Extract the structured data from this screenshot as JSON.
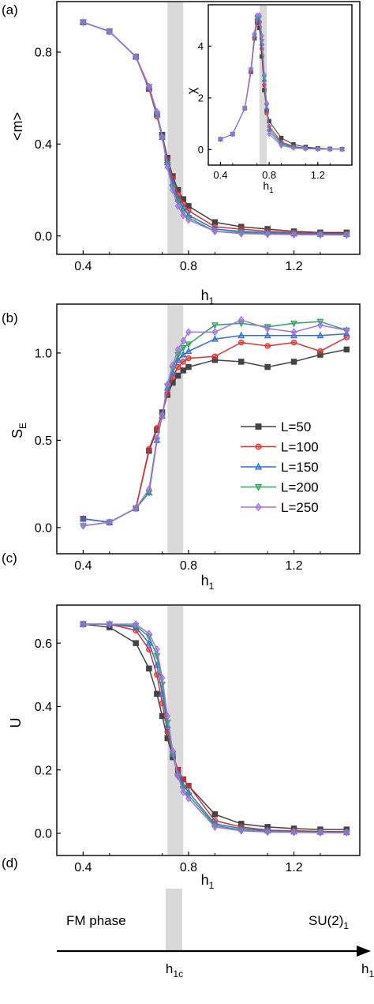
{
  "panels": {
    "a": {
      "label": "(a)",
      "ylabel": "<m>",
      "xlabel": "h",
      "xlabel_sub": "1"
    },
    "a_inset": {
      "ylabel": "χ",
      "xlabel": "h",
      "xlabel_sub": "1"
    },
    "b": {
      "label": "(b)",
      "ylabel": "S",
      "ylabel_sub": "E",
      "xlabel": "h",
      "xlabel_sub": "1"
    },
    "c": {
      "label": "(c)",
      "ylabel": "U",
      "xlabel": "h",
      "xlabel_sub": "1"
    },
    "d": {
      "label": "(d)",
      "left_text": "FM phase",
      "right_text": "SU(2)",
      "right_sub": "1",
      "crit_label": "h",
      "crit_sub": "1c",
      "axis_label": "h",
      "axis_sub": "1"
    }
  },
  "colors": {
    "L50": "#444444",
    "L100": "#e03030",
    "L150": "#2e6fd8",
    "L200": "#2aa25a",
    "L250": "#a070e8",
    "band": "#d9d9d9"
  },
  "chart_data": [
    {
      "type": "line",
      "panel": "a",
      "xlim": [
        0.3,
        1.45
      ],
      "ylim": [
        -0.08,
        1.02
      ],
      "xticks": [
        "0.4",
        "0.8",
        "1.2"
      ],
      "yticks": [
        "0.0",
        "0.4",
        "0.8"
      ],
      "ytick_values": [
        0.0,
        0.4,
        0.8
      ],
      "x": [
        0.4,
        0.5,
        0.6,
        0.65,
        0.68,
        0.7,
        0.72,
        0.74,
        0.76,
        0.78,
        0.8,
        0.9,
        1.0,
        1.1,
        1.2,
        1.3,
        1.4
      ],
      "series": [
        {
          "name": "L=50",
          "values": [
            0.93,
            0.89,
            0.78,
            0.64,
            0.53,
            0.44,
            0.34,
            0.26,
            0.2,
            0.16,
            0.13,
            0.06,
            0.04,
            0.03,
            0.02,
            0.015,
            0.015
          ]
        },
        {
          "name": "L=100",
          "values": [
            0.93,
            0.89,
            0.78,
            0.64,
            0.52,
            0.43,
            0.33,
            0.25,
            0.18,
            0.14,
            0.11,
            0.04,
            0.03,
            0.02,
            0.015,
            0.01,
            0.01
          ]
        },
        {
          "name": "L=150",
          "values": [
            0.93,
            0.89,
            0.78,
            0.65,
            0.53,
            0.43,
            0.32,
            0.23,
            0.16,
            0.12,
            0.09,
            0.03,
            0.02,
            0.015,
            0.01,
            0.008,
            0.007
          ]
        },
        {
          "name": "L=200",
          "values": [
            0.93,
            0.89,
            0.78,
            0.65,
            0.53,
            0.43,
            0.31,
            0.21,
            0.15,
            0.1,
            0.08,
            0.02,
            0.015,
            0.01,
            0.008,
            0.006,
            0.005
          ]
        },
        {
          "name": "L=250",
          "values": [
            0.93,
            0.89,
            0.78,
            0.65,
            0.54,
            0.43,
            0.3,
            0.2,
            0.13,
            0.09,
            0.07,
            0.02,
            0.01,
            0.008,
            0.006,
            0.005,
            0.004
          ]
        }
      ]
    },
    {
      "type": "line",
      "panel": "a_inset",
      "xlim": [
        0.3,
        1.48
      ],
      "ylim": [
        -0.6,
        5.6
      ],
      "xticks": [
        "0.4",
        "0.8",
        "1.2"
      ],
      "yticks": [
        "0",
        "2",
        "4"
      ],
      "ytick_values": [
        0,
        2,
        4
      ],
      "x": [
        0.4,
        0.5,
        0.6,
        0.65,
        0.68,
        0.7,
        0.72,
        0.74,
        0.76,
        0.78,
        0.8,
        0.9,
        1.0,
        1.1,
        1.2,
        1.3,
        1.4
      ],
      "series": [
        {
          "name": "L=50",
          "values": [
            0.4,
            0.6,
            1.6,
            3.0,
            4.3,
            4.9,
            4.7,
            3.6,
            2.3,
            1.5,
            1.1,
            0.45,
            0.2,
            0.1,
            0.05,
            0.03,
            0.02
          ]
        },
        {
          "name": "L=100",
          "values": [
            0.4,
            0.6,
            1.6,
            3.0,
            4.3,
            5.0,
            4.9,
            3.9,
            2.5,
            1.4,
            0.9,
            0.3,
            0.12,
            0.06,
            0.03,
            0.02,
            0.01
          ]
        },
        {
          "name": "L=150",
          "values": [
            0.4,
            0.6,
            1.6,
            3.1,
            4.4,
            5.1,
            5.0,
            4.1,
            2.7,
            1.6,
            0.8,
            0.25,
            0.1,
            0.05,
            0.03,
            0.02,
            0.01
          ]
        },
        {
          "name": "L=200",
          "values": [
            0.4,
            0.6,
            1.6,
            3.1,
            4.4,
            5.1,
            5.1,
            4.2,
            2.8,
            1.7,
            0.7,
            0.2,
            0.08,
            0.04,
            0.02,
            0.01,
            0.01
          ]
        },
        {
          "name": "L=250",
          "values": [
            0.4,
            0.6,
            1.6,
            3.1,
            4.5,
            5.2,
            5.2,
            4.4,
            2.9,
            1.8,
            0.6,
            0.15,
            0.06,
            0.03,
            0.02,
            0.01,
            0.01
          ]
        }
      ]
    },
    {
      "type": "line",
      "panel": "b",
      "xlim": [
        0.3,
        1.45
      ],
      "ylim": [
        -0.15,
        1.28
      ],
      "xticks": [
        "0.4",
        "0.8",
        "1.2"
      ],
      "yticks": [
        "0.0",
        "0.5",
        "1.0"
      ],
      "ytick_values": [
        0.0,
        0.5,
        1.0
      ],
      "legend_position": "center-right",
      "x": [
        0.4,
        0.5,
        0.6,
        0.65,
        0.68,
        0.7,
        0.72,
        0.74,
        0.76,
        0.78,
        0.8,
        0.9,
        1.0,
        1.1,
        1.2,
        1.3,
        1.4
      ],
      "series": [
        {
          "name": "L=50",
          "values": [
            0.05,
            0.03,
            0.11,
            0.44,
            0.56,
            0.66,
            0.76,
            0.83,
            0.87,
            0.9,
            0.92,
            0.96,
            0.95,
            0.92,
            0.95,
            0.99,
            1.02
          ]
        },
        {
          "name": "L=100",
          "values": [
            0.05,
            0.03,
            0.11,
            0.45,
            0.57,
            0.65,
            0.77,
            0.86,
            0.92,
            0.95,
            0.97,
            0.98,
            1.06,
            1.04,
            1.06,
            1.01,
            1.09
          ]
        },
        {
          "name": "L=150",
          "values": [
            0.05,
            0.03,
            0.11,
            0.2,
            0.5,
            0.64,
            0.8,
            0.89,
            0.96,
            0.99,
            1.01,
            1.08,
            1.1,
            1.1,
            1.1,
            1.1,
            1.11
          ]
        },
        {
          "name": "L=200",
          "values": [
            0.01,
            0.03,
            0.11,
            0.2,
            0.5,
            0.64,
            0.81,
            0.91,
            0.99,
            1.03,
            1.05,
            1.16,
            1.17,
            1.15,
            1.17,
            1.18,
            1.13
          ]
        },
        {
          "name": "L=250",
          "values": [
            0.01,
            0.03,
            0.11,
            0.22,
            0.51,
            0.64,
            0.82,
            0.93,
            1.02,
            1.07,
            1.12,
            1.12,
            1.19,
            1.14,
            1.12,
            1.16,
            1.13
          ]
        }
      ]
    },
    {
      "type": "line",
      "panel": "c",
      "xlim": [
        0.3,
        1.45
      ],
      "ylim": [
        -0.07,
        0.72
      ],
      "xticks": [
        "0.4",
        "0.8",
        "1.2"
      ],
      "yticks": [
        "0.0",
        "0.2",
        "0.4",
        "0.6"
      ],
      "ytick_values": [
        0.0,
        0.2,
        0.4,
        0.6
      ],
      "x": [
        0.4,
        0.5,
        0.6,
        0.65,
        0.68,
        0.7,
        0.72,
        0.74,
        0.76,
        0.78,
        0.8,
        0.9,
        1.0,
        1.1,
        1.2,
        1.3,
        1.4
      ],
      "series": [
        {
          "name": "L=50",
          "values": [
            0.66,
            0.65,
            0.6,
            0.52,
            0.44,
            0.37,
            0.3,
            0.24,
            0.2,
            0.17,
            0.15,
            0.06,
            0.03,
            0.02,
            0.015,
            0.012,
            0.012
          ]
        },
        {
          "name": "L=100",
          "values": [
            0.66,
            0.66,
            0.64,
            0.58,
            0.5,
            0.41,
            0.32,
            0.25,
            0.2,
            0.17,
            0.15,
            0.04,
            0.02,
            0.01,
            0.008,
            0.006,
            0.005
          ]
        },
        {
          "name": "L=150",
          "values": [
            0.66,
            0.66,
            0.65,
            0.6,
            0.53,
            0.44,
            0.34,
            0.25,
            0.19,
            0.15,
            0.13,
            0.03,
            0.015,
            0.008,
            0.005,
            0.004,
            0.003
          ]
        },
        {
          "name": "L=200",
          "values": [
            0.66,
            0.66,
            0.655,
            0.62,
            0.56,
            0.47,
            0.35,
            0.25,
            0.18,
            0.14,
            0.12,
            0.025,
            0.01,
            0.005,
            0.004,
            0.003,
            0.002
          ]
        },
        {
          "name": "L=250",
          "values": [
            0.66,
            0.66,
            0.66,
            0.63,
            0.58,
            0.49,
            0.37,
            0.26,
            0.18,
            0.13,
            0.11,
            0.02,
            0.008,
            0.004,
            0.003,
            0.002,
            0.002
          ]
        }
      ]
    }
  ]
}
